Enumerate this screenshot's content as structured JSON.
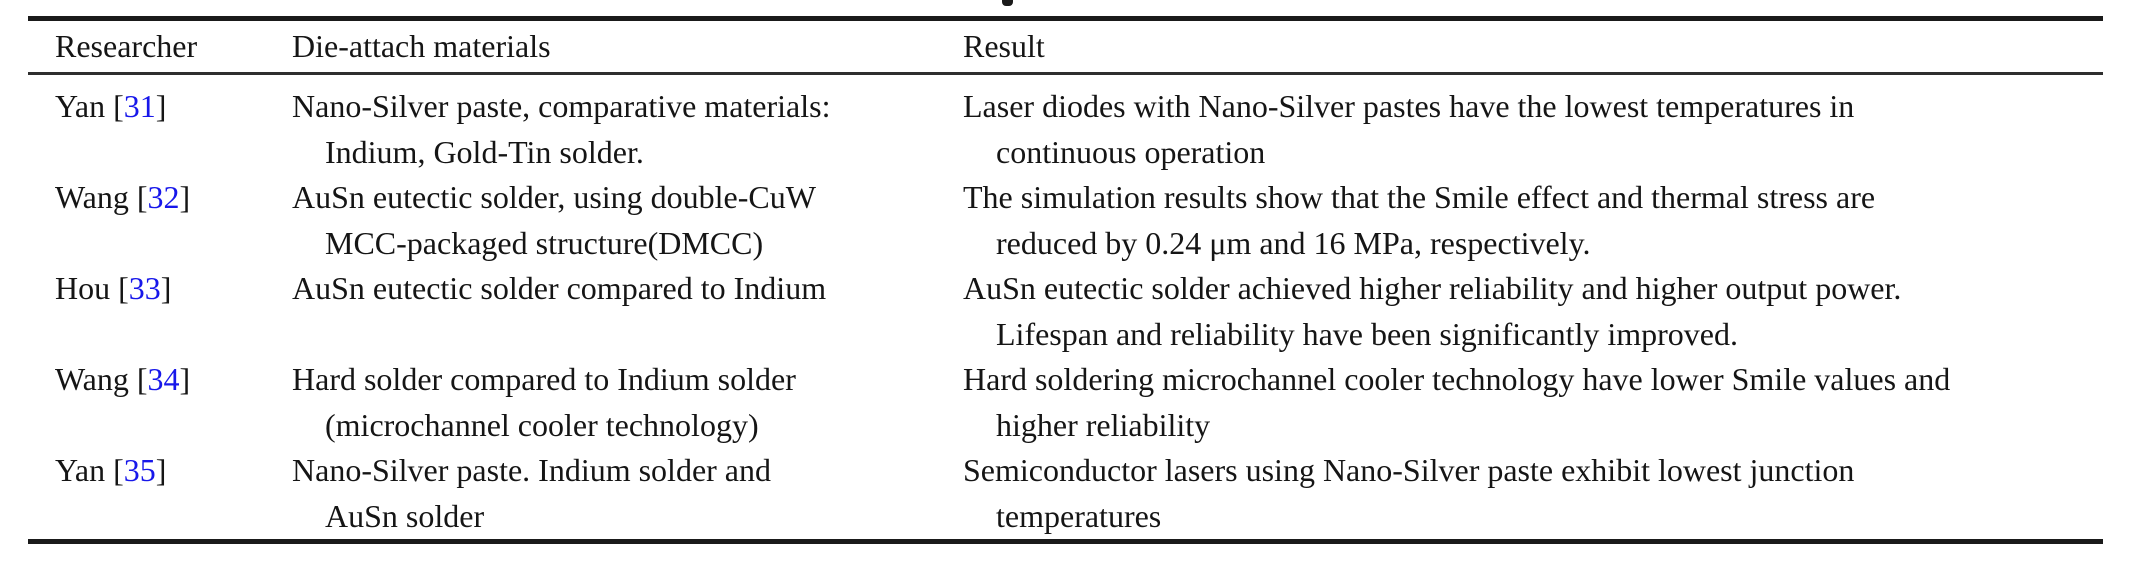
{
  "page": {
    "background": "#ffffff"
  },
  "colors": {
    "text": "#151515",
    "rule": "#1a1a1a",
    "citation_blue": "#1717ea"
  },
  "table": {
    "headers": [
      "Researcher",
      "Die-attach materials",
      "Result"
    ],
    "rows": [
      {
        "researcher": {
          "prefix": "Yan [",
          "ref": "31",
          "suffix": "]"
        },
        "materials": [
          "Nano-Silver paste, comparative materials:",
          "Indium, Gold-Tin solder."
        ],
        "result": [
          "Laser diodes with Nano-Silver pastes have the lowest temperatures in",
          "continuous operation"
        ]
      },
      {
        "researcher": {
          "prefix": "Wang [",
          "ref": "32",
          "suffix": "]"
        },
        "materials": [
          "AuSn eutectic solder, using double-CuW",
          "MCC-packaged structure(DMCC)"
        ],
        "result": [
          "The simulation results show that the Smile effect and thermal stress are",
          "reduced by 0.24 μm and 16 MPa, respectively."
        ]
      },
      {
        "researcher": {
          "prefix": "Hou [",
          "ref": "33",
          "suffix": "]"
        },
        "materials": [
          "AuSn eutectic solder compared to Indium"
        ],
        "result": [
          "AuSn eutectic solder achieved higher reliability and higher output power.",
          "Lifespan and reliability have been significantly improved."
        ]
      },
      {
        "researcher": {
          "prefix": "Wang [",
          "ref": "34",
          "suffix": "]"
        },
        "materials": [
          "Hard solder compared to Indium solder",
          "(microchannel cooler technology)"
        ],
        "result": [
          "Hard soldering microchannel cooler technology have lower Smile values and",
          "higher reliability"
        ]
      },
      {
        "researcher": {
          "prefix": "Yan [",
          "ref": "35",
          "suffix": "]"
        },
        "materials": [
          "Nano-Silver paste. Indium solder and",
          "AuSn solder"
        ],
        "result": [
          "Semiconductor lasers using Nano-Silver paste exhibit lowest junction",
          "temperatures"
        ]
      }
    ]
  }
}
